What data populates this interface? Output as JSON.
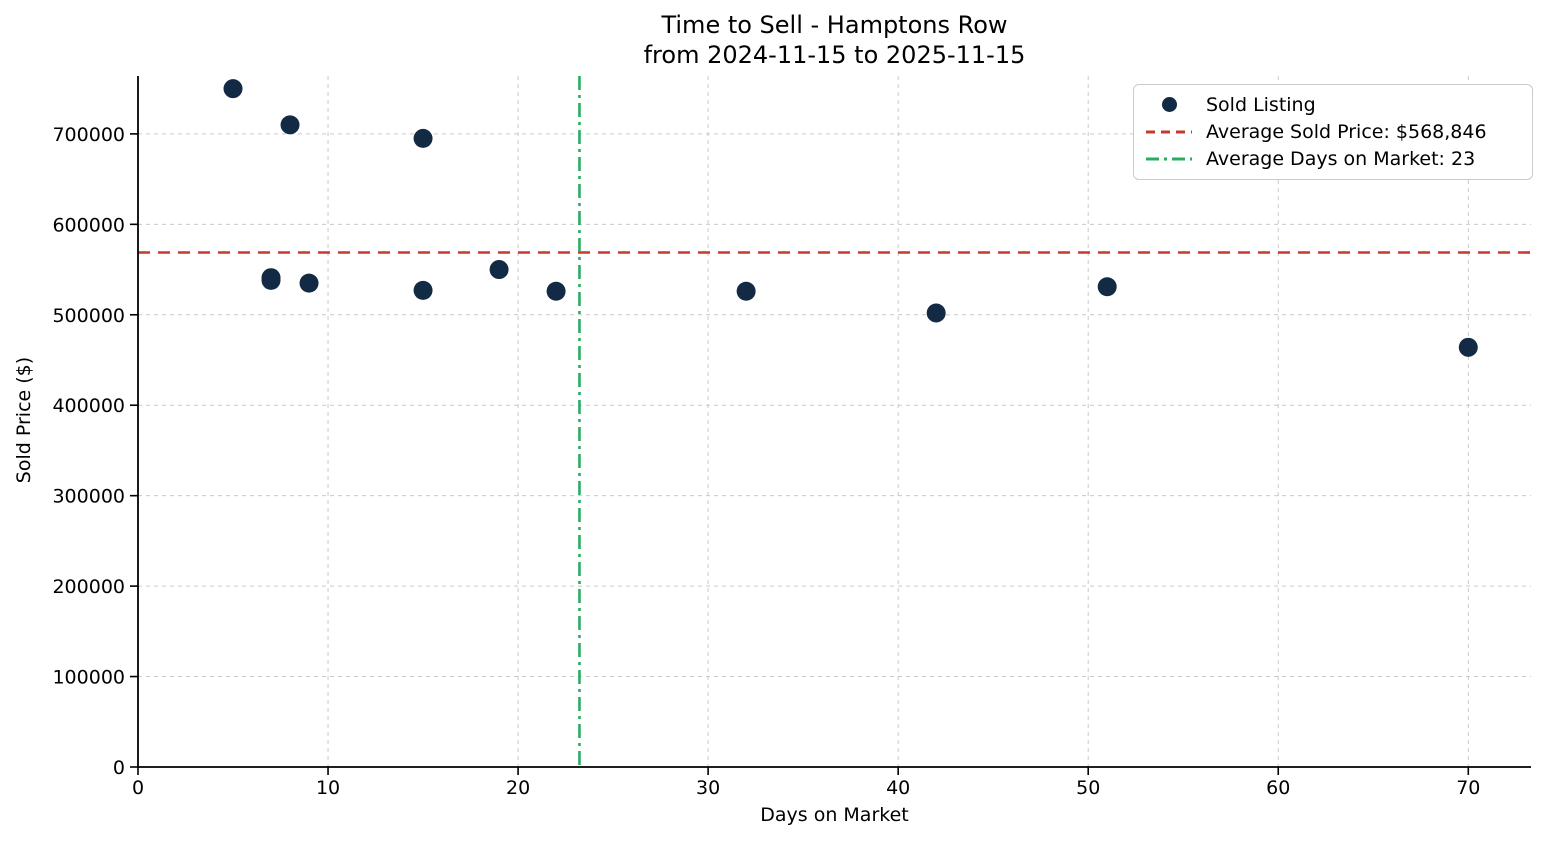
{
  "chart_data": {
    "type": "scatter",
    "title": "Time to Sell - Hamptons Row",
    "subtitle": "from 2024-11-15 to 2025-11-15",
    "xlabel": "Days on Market",
    "ylabel": "Sold Price ($)",
    "xlim": [
      0,
      73.3
    ],
    "ylim": [
      0,
      764000
    ],
    "xticks": [
      0,
      10,
      20,
      30,
      40,
      50,
      60,
      70
    ],
    "yticks": [
      0,
      100000,
      200000,
      300000,
      400000,
      500000,
      600000,
      700000
    ],
    "grid": true,
    "legend_position": "upper right",
    "series": [
      {
        "name": "Sold Listing",
        "type": "scatter",
        "color": "#132a45",
        "points": [
          [
            5,
            750000
          ],
          [
            7,
            538000
          ],
          [
            7,
            541000
          ],
          [
            8,
            710000
          ],
          [
            9,
            535000
          ],
          [
            15,
            695000
          ],
          [
            15,
            527000
          ],
          [
            19,
            550000
          ],
          [
            22,
            526000
          ],
          [
            32,
            526000
          ],
          [
            42,
            502000
          ],
          [
            51,
            531000
          ],
          [
            70,
            464000
          ]
        ]
      },
      {
        "name": "Average Sold Price: $568,846",
        "type": "hline",
        "value": 568846,
        "color": "#c5392e",
        "style": "dashed"
      },
      {
        "name": "Average Days on Market: 23",
        "type": "vline",
        "value": 23.23,
        "color": "#27ae60",
        "style": "dashdot"
      }
    ],
    "colors": {
      "marker": "#132a45",
      "avg_price_line": "#c5392e",
      "avg_days_line": "#27ae60",
      "grid": "#c9c9c9",
      "axis": "#000000"
    }
  }
}
